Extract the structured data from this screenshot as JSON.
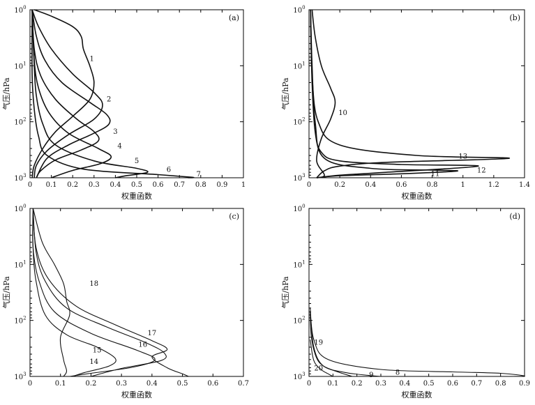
{
  "chart_data": [
    {
      "type": "line",
      "panel": "(a)",
      "xlabel": "权重函数",
      "ylabel": "气压/hPa",
      "xlim": [
        0,
        1
      ],
      "xticks": [
        "0",
        "0.1",
        "0.2",
        "0.3",
        "0.4",
        "0.5",
        "0.6",
        "0.7",
        "0.8",
        "0.9",
        "1"
      ],
      "ylim": [
        1,
        1000
      ],
      "yscale": "log",
      "yinverted": true,
      "yticks": [
        {
          "base": "10",
          "exp": "0",
          "value": 1
        },
        {
          "base": "10",
          "exp": "1",
          "value": 10
        },
        {
          "base": "10",
          "exp": "2",
          "value": 100
        },
        {
          "base": "10",
          "exp": "3",
          "value": 1000
        }
      ],
      "series": [
        {
          "name": "1",
          "label_at": [
            0.29,
            7.5
          ],
          "points": [
            [
              0.02,
              1
            ],
            [
              0.1,
              1.3
            ],
            [
              0.2,
              2
            ],
            [
              0.24,
              3
            ],
            [
              0.25,
              5
            ],
            [
              0.28,
              10
            ],
            [
              0.3,
              20
            ],
            [
              0.28,
              40
            ],
            [
              0.2,
              80
            ],
            [
              0.12,
              150
            ],
            [
              0.06,
              300
            ],
            [
              0.02,
              600
            ],
            [
              0.01,
              1000
            ]
          ]
        },
        {
          "name": "2",
          "label_at": [
            0.37,
            40
          ],
          "points": [
            [
              0.01,
              1
            ],
            [
              0.04,
              2
            ],
            [
              0.1,
              5
            ],
            [
              0.2,
              14
            ],
            [
              0.3,
              30
            ],
            [
              0.34,
              50
            ],
            [
              0.3,
              90
            ],
            [
              0.18,
              170
            ],
            [
              0.08,
              330
            ],
            [
              0.03,
              600
            ],
            [
              0.02,
              1000
            ]
          ]
        },
        {
          "name": "3",
          "label_at": [
            0.4,
            150
          ],
          "points": [
            [
              0.01,
              1
            ],
            [
              0.03,
              3
            ],
            [
              0.07,
              8
            ],
            [
              0.15,
              20
            ],
            [
              0.28,
              45
            ],
            [
              0.36,
              75
            ],
            [
              0.37,
              110
            ],
            [
              0.3,
              160
            ],
            [
              0.18,
              260
            ],
            [
              0.08,
              450
            ],
            [
              0.03,
              1000
            ]
          ]
        },
        {
          "name": "4",
          "label_at": [
            0.42,
            270
          ],
          "points": [
            [
              0.01,
              1
            ],
            [
              0.02,
              5
            ],
            [
              0.05,
              15
            ],
            [
              0.12,
              40
            ],
            [
              0.22,
              90
            ],
            [
              0.3,
              150
            ],
            [
              0.32,
              220
            ],
            [
              0.24,
              320
            ],
            [
              0.12,
              480
            ],
            [
              0.05,
              750
            ],
            [
              0.03,
              1000
            ]
          ]
        },
        {
          "name": "5",
          "label_at": [
            0.5,
            500
          ],
          "points": [
            [
              0.01,
              1
            ],
            [
              0.02,
              8
            ],
            [
              0.04,
              25
            ],
            [
              0.09,
              70
            ],
            [
              0.18,
              160
            ],
            [
              0.32,
              300
            ],
            [
              0.38,
              420
            ],
            [
              0.33,
              560
            ],
            [
              0.2,
              740
            ],
            [
              0.1,
              1000
            ]
          ]
        },
        {
          "name": "6",
          "label_at": [
            0.65,
            720
          ],
          "points": [
            [
              0.01,
              1
            ],
            [
              0.02,
              10
            ],
            [
              0.03,
              35
            ],
            [
              0.06,
              110
            ],
            [
              0.12,
              260
            ],
            [
              0.3,
              500
            ],
            [
              0.5,
              680
            ],
            [
              0.55,
              800
            ],
            [
              0.45,
              920
            ],
            [
              0.4,
              1000
            ]
          ]
        },
        {
          "name": "7",
          "label_at": [
            0.79,
            870
          ],
          "points": [
            [
              0.01,
              1
            ],
            [
              0.01,
              15
            ],
            [
              0.02,
              60
            ],
            [
              0.04,
              180
            ],
            [
              0.08,
              400
            ],
            [
              0.25,
              700
            ],
            [
              0.6,
              880
            ],
            [
              0.76,
              980
            ],
            [
              0.74,
              1000
            ]
          ]
        }
      ]
    },
    {
      "type": "line",
      "panel": "(b)",
      "xlabel": "权重函数",
      "ylabel": "气压/hPa",
      "xlim": [
        0,
        1.4
      ],
      "xticks": [
        "0",
        "0.2",
        "0.4",
        "0.6",
        "0.8",
        "1",
        "1.2",
        "1.4"
      ],
      "ylim": [
        1,
        1000
      ],
      "yscale": "log",
      "yinverted": true,
      "yticks": [
        {
          "base": "10",
          "exp": "0",
          "value": 1
        },
        {
          "base": "10",
          "exp": "1",
          "value": 10
        },
        {
          "base": "10",
          "exp": "2",
          "value": 100
        },
        {
          "base": "10",
          "exp": "3",
          "value": 1000
        }
      ],
      "series": [
        {
          "name": "10",
          "label_at": [
            0.22,
            70
          ],
          "points": [
            [
              0.02,
              1
            ],
            [
              0.04,
              3
            ],
            [
              0.08,
              10
            ],
            [
              0.14,
              25
            ],
            [
              0.17,
              45
            ],
            [
              0.14,
              90
            ],
            [
              0.08,
              200
            ],
            [
              0.05,
              500
            ],
            [
              0.1,
              900
            ],
            [
              0.05,
              1000
            ]
          ]
        },
        {
          "name": "11",
          "label_at": [
            0.82,
            860
          ],
          "points": [
            [
              0.01,
              1
            ],
            [
              0.02,
              10
            ],
            [
              0.04,
              100
            ],
            [
              0.1,
              450
            ],
            [
              0.4,
              680
            ],
            [
              0.8,
              730
            ],
            [
              0.96,
              760
            ],
            [
              0.6,
              850
            ],
            [
              0.2,
              920
            ],
            [
              0.05,
              1000
            ]
          ]
        },
        {
          "name": "12",
          "label_at": [
            1.12,
            740
          ],
          "points": [
            [
              0.01,
              1
            ],
            [
              0.02,
              20
            ],
            [
              0.04,
              150
            ],
            [
              0.08,
              350
            ],
            [
              0.2,
              500
            ],
            [
              0.6,
              580
            ],
            [
              1.1,
              620
            ],
            [
              0.5,
              800
            ],
            [
              0.2,
              900
            ],
            [
              0.05,
              1000
            ]
          ]
        },
        {
          "name": "13",
          "label_at": [
            1.0,
            420
          ],
          "points": [
            [
              0.01,
              1
            ],
            [
              0.02,
              15
            ],
            [
              0.06,
              100
            ],
            [
              0.2,
              260
            ],
            [
              0.7,
              400
            ],
            [
              1.3,
              450
            ],
            [
              0.5,
              530
            ],
            [
              0.2,
              620
            ],
            [
              0.1,
              750
            ],
            [
              0.05,
              1000
            ]
          ]
        }
      ]
    },
    {
      "type": "line",
      "panel": "(c)",
      "xlabel": "权重函数",
      "ylabel": "气压/hPa",
      "xlim": [
        0,
        0.7
      ],
      "xticks": [
        "0",
        "0.1",
        "0.2",
        "0.3",
        "0.4",
        "0.5",
        "0.6",
        "0.7"
      ],
      "ylim": [
        1,
        1000
      ],
      "yscale": "log",
      "yinverted": true,
      "yticks": [
        {
          "base": "10",
          "exp": "0",
          "value": 1
        },
        {
          "base": "10",
          "exp": "1",
          "value": 10
        },
        {
          "base": "10",
          "exp": "2",
          "value": 100
        },
        {
          "base": "10",
          "exp": "3",
          "value": 1000
        }
      ],
      "series": [
        {
          "name": "14",
          "label_at": [
            0.21,
            550
          ],
          "points": [
            [
              0.01,
              1
            ],
            [
              0.01,
              5
            ],
            [
              0.02,
              20
            ],
            [
              0.05,
              80
            ],
            [
              0.12,
              180
            ],
            [
              0.22,
              300
            ],
            [
              0.28,
              480
            ],
            [
              0.26,
              650
            ],
            [
              0.18,
              850
            ],
            [
              0.14,
              1000
            ]
          ]
        },
        {
          "name": "15",
          "label_at": [
            0.22,
            340
          ],
          "points": [
            [
              0.01,
              1
            ],
            [
              0.01,
              5
            ],
            [
              0.03,
              20
            ],
            [
              0.08,
              70
            ],
            [
              0.2,
              170
            ],
            [
              0.35,
              340
            ],
            [
              0.41,
              500
            ],
            [
              0.34,
              680
            ],
            [
              0.2,
              880
            ],
            [
              0.13,
              1000
            ]
          ]
        },
        {
          "name": "16",
          "label_at": [
            0.37,
            270
          ],
          "points": [
            [
              0.01,
              1
            ],
            [
              0.02,
              6
            ],
            [
              0.05,
              20
            ],
            [
              0.12,
              60
            ],
            [
              0.25,
              130
            ],
            [
              0.38,
              250
            ],
            [
              0.44,
              380
            ],
            [
              0.43,
              520
            ],
            [
              0.3,
              720
            ],
            [
              0.2,
              1000
            ]
          ]
        },
        {
          "name": "17",
          "label_at": [
            0.4,
            170
          ],
          "points": [
            [
              0.01,
              1
            ],
            [
              0.02,
              5
            ],
            [
              0.06,
              18
            ],
            [
              0.15,
              55
            ],
            [
              0.28,
              120
            ],
            [
              0.4,
              230
            ],
            [
              0.45,
              330
            ],
            [
              0.4,
              450
            ],
            [
              0.45,
              700
            ],
            [
              0.5,
              900
            ],
            [
              0.52,
              1000
            ]
          ]
        },
        {
          "name": "18",
          "label_at": [
            0.21,
            22
          ],
          "points": [
            [
              0.01,
              1
            ],
            [
              0.04,
              4
            ],
            [
              0.08,
              10
            ],
            [
              0.11,
              22
            ],
            [
              0.12,
              45
            ],
            [
              0.13,
              80
            ],
            [
              0.1,
              200
            ],
            [
              0.11,
              500
            ],
            [
              0.12,
              800
            ],
            [
              0.11,
              1000
            ]
          ]
        }
      ]
    },
    {
      "type": "line",
      "panel": "(d)",
      "xlabel": "权重函数",
      "ylabel": "气压/hPa",
      "xlim": [
        0,
        0.9
      ],
      "xticks": [
        "0",
        "0.1",
        "0.2",
        "0.3",
        "0.4",
        "0.5",
        "0.6",
        "0.7",
        "0.8",
        "0.9"
      ],
      "ylim": [
        1,
        1000
      ],
      "yscale": "log",
      "yinverted": true,
      "yticks": [
        {
          "base": "10",
          "exp": "0",
          "value": 1
        },
        {
          "base": "10",
          "exp": "1",
          "value": 10
        },
        {
          "base": "10",
          "exp": "2",
          "value": 100
        },
        {
          "base": "10",
          "exp": "3",
          "value": 1000
        }
      ],
      "series": [
        {
          "name": "8",
          "label_at": [
            0.37,
            850
          ],
          "points": [
            [
              0.005,
              60
            ],
            [
              0.02,
              220
            ],
            [
              0.08,
              500
            ],
            [
              0.3,
              750
            ],
            [
              0.6,
              830
            ],
            [
              0.8,
              880
            ],
            [
              0.9,
              980
            ],
            [
              0.85,
              1000
            ]
          ]
        },
        {
          "name": "9",
          "label_at": [
            0.26,
            950
          ],
          "points": [
            [
              0.005,
              70
            ],
            [
              0.02,
              300
            ],
            [
              0.06,
              650
            ],
            [
              0.15,
              850
            ],
            [
              0.25,
              960
            ],
            [
              0.3,
              1000
            ]
          ]
        },
        {
          "name": "19",
          "label_at": [
            0.04,
            250
          ],
          "points": [
            [
              0.005,
              70
            ],
            [
              0.01,
              200
            ],
            [
              0.03,
              450
            ],
            [
              0.06,
              650
            ],
            [
              0.12,
              830
            ],
            [
              0.18,
              1000
            ]
          ]
        },
        {
          "name": "20",
          "label_at": [
            0.04,
            720
          ],
          "points": [
            [
              0.005,
              220
            ],
            [
              0.02,
              520
            ],
            [
              0.05,
              750
            ],
            [
              0.08,
              900
            ],
            [
              0.1,
              1000
            ]
          ]
        }
      ]
    }
  ]
}
